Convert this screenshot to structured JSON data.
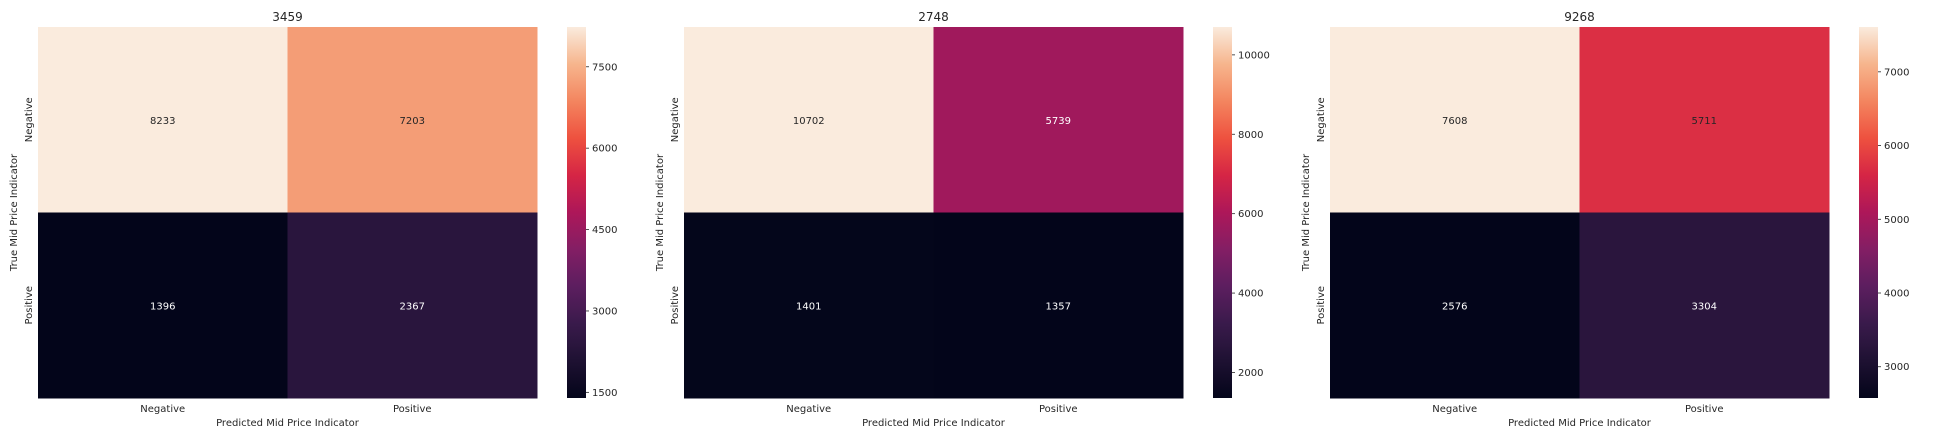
{
  "chart_data": [
    {
      "type": "heatmap",
      "title": "3459",
      "xlabel": "Predicted Mid Price Indicator",
      "ylabel": "True Mid Price Indicator",
      "x_categories": [
        "Negative",
        "Positive"
      ],
      "y_categories": [
        "Negative",
        "Positive"
      ],
      "values": [
        [
          8233,
          7203
        ],
        [
          1396,
          2367
        ]
      ],
      "colorbar": {
        "min": 1396,
        "max": 8233,
        "ticks": [
          1500,
          3000,
          4500,
          6000,
          7500
        ]
      },
      "colormap": "rocket"
    },
    {
      "type": "heatmap",
      "title": "2748",
      "xlabel": "Predicted Mid Price Indicator",
      "ylabel": "True Mid Price Indicator",
      "x_categories": [
        "Negative",
        "Positive"
      ],
      "y_categories": [
        "Negative",
        "Positive"
      ],
      "values": [
        [
          10702,
          5739
        ],
        [
          1401,
          1357
        ]
      ],
      "colorbar": {
        "min": 1357,
        "max": 10702,
        "ticks": [
          2000,
          4000,
          6000,
          8000,
          10000
        ]
      },
      "colormap": "rocket"
    },
    {
      "type": "heatmap",
      "title": "9268",
      "xlabel": "Predicted Mid Price Indicator",
      "ylabel": "True Mid Price Indicator",
      "x_categories": [
        "Negative",
        "Positive"
      ],
      "y_categories": [
        "Negative",
        "Positive"
      ],
      "values": [
        [
          7608,
          5711
        ],
        [
          2576,
          3304
        ]
      ],
      "colorbar": {
        "min": 2576,
        "max": 7608,
        "ticks": [
          3000,
          4000,
          5000,
          6000,
          7000
        ]
      },
      "colormap": "rocket"
    }
  ]
}
